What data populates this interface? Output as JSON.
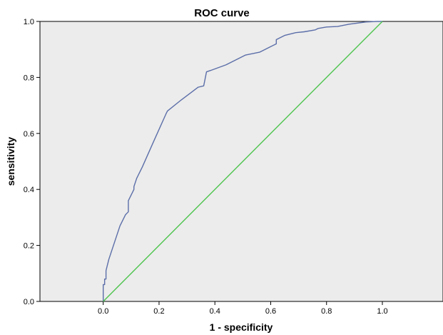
{
  "chart_data": {
    "type": "line",
    "title": "ROC curve",
    "xlabel": "1 - specificity",
    "ylabel": "sensitivity",
    "xlim": [
      -0.25,
      1.22
    ],
    "ylim": [
      0.0,
      1.0
    ],
    "x_ticks": [
      0.0,
      0.2,
      0.4,
      0.6,
      0.8,
      1.0
    ],
    "y_ticks": [
      0.0,
      0.2,
      0.4,
      0.6,
      0.8,
      1.0
    ],
    "x_tick_labels": [
      "0.0",
      "0.2",
      "0.4",
      "0.6",
      "0.8",
      "1.0"
    ],
    "y_tick_labels": [
      "0.0",
      "0.2",
      "0.4",
      "0.6",
      "0.8",
      "1.0"
    ],
    "grid": false,
    "background_color": "#ececec",
    "series": [
      {
        "color": "#5b6ea8",
        "x": [
          0.0,
          0.0,
          0.005,
          0.005,
          0.01,
          0.01,
          0.02,
          0.04,
          0.06,
          0.08,
          0.09,
          0.09,
          0.1,
          0.11,
          0.11,
          0.12,
          0.14,
          0.18,
          0.225,
          0.23,
          0.28,
          0.34,
          0.36,
          0.37,
          0.385,
          0.44,
          0.51,
          0.56,
          0.6,
          0.62,
          0.62,
          0.63,
          0.65,
          0.69,
          0.72,
          0.76,
          0.77,
          0.8,
          0.84,
          0.88,
          0.94,
          0.98,
          1.0
        ],
        "y": [
          0.0,
          0.06,
          0.06,
          0.08,
          0.08,
          0.11,
          0.15,
          0.21,
          0.27,
          0.31,
          0.32,
          0.36,
          0.38,
          0.4,
          0.41,
          0.44,
          0.48,
          0.57,
          0.67,
          0.68,
          0.72,
          0.765,
          0.77,
          0.82,
          0.825,
          0.845,
          0.88,
          0.89,
          0.91,
          0.92,
          0.935,
          0.94,
          0.95,
          0.96,
          0.963,
          0.97,
          0.975,
          0.98,
          0.982,
          0.99,
          0.998,
          1.0,
          1.0
        ]
      },
      {
        "color": "#4dc44d",
        "x": [
          0.0,
          1.0
        ],
        "y": [
          0.0,
          1.0
        ]
      }
    ]
  }
}
